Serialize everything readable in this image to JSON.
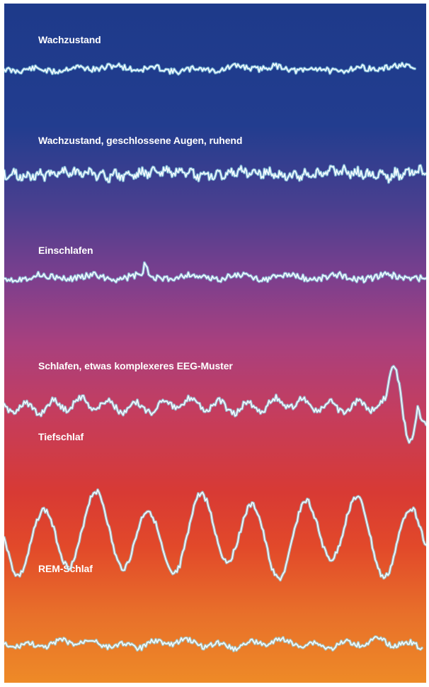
{
  "stages": [
    {
      "id": "wach",
      "label": "Wachzustand"
    },
    {
      "id": "wach-augen",
      "label": "Wachzustand, geschlossene Augen, ruhend"
    },
    {
      "id": "einschlafen",
      "label": "Einschlafen"
    },
    {
      "id": "schlafen",
      "label": "Schlafen, etwas komplexeres EEG-Muster"
    },
    {
      "id": "tiefschlaf",
      "label": "Tiefschlaf"
    },
    {
      "id": "rem",
      "label": "REM-Schlaf"
    }
  ],
  "colors": {
    "top": "#1e3a8a",
    "middle": "#a8407e",
    "lower": "#d83a34",
    "bottom": "#ee8a27",
    "trace": "#f4fbff",
    "trace_halo": "#8fd6e6"
  }
}
